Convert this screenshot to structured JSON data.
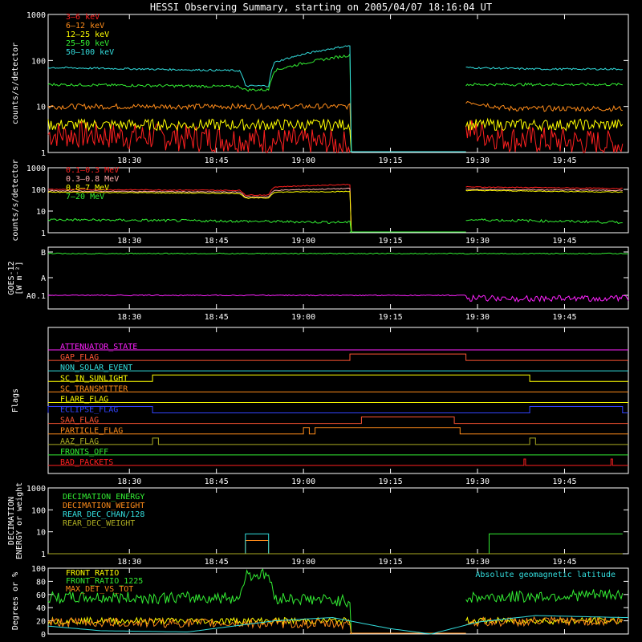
{
  "title": "HESSI Observing Summary, starting on 2005/04/07 18:16:04 UT",
  "time_ticks": [
    "18:30",
    "18:45",
    "19:00",
    "19:15",
    "19:30",
    "19:45"
  ],
  "colors": {
    "axis": "#ffffff",
    "background": "#000000"
  },
  "chart_data": [
    {
      "type": "line",
      "panel": "low-energy-rates",
      "ylabel": "counts/s/detector",
      "y_scale": "log",
      "ylim": [
        1,
        1000
      ],
      "y_ticks": [
        "1",
        "10",
        "100",
        "1000"
      ],
      "legend_placement": "top-left",
      "data_gaps": [
        [
          "19:08",
          "19:28"
        ]
      ],
      "series": [
        {
          "name": "3–6 keV",
          "color": "#ff2020",
          "x": [
            "18:16",
            "18:45",
            "19:08",
            "19:28",
            "19:35",
            "19:55"
          ],
          "values": [
            2.5,
            2.0,
            1.5,
            3.0,
            2.0,
            1.5
          ]
        },
        {
          "name": "6–12 keV",
          "color": "#ff8c1a",
          "x": [
            "18:16",
            "18:45",
            "19:08",
            "19:28",
            "19:35",
            "19:55"
          ],
          "values": [
            10,
            10,
            10,
            13,
            9,
            9
          ]
        },
        {
          "name": "12–25 keV",
          "color": "#ffff00",
          "x": [
            "18:16",
            "18:45",
            "19:08",
            "19:28",
            "19:35",
            "19:55"
          ],
          "values": [
            4,
            4,
            4,
            4,
            4,
            4
          ]
        },
        {
          "name": "25–50 keV",
          "color": "#33ee33",
          "x": [
            "18:16",
            "18:49",
            "18:50",
            "18:54",
            "18:55",
            "19:08",
            "19:28",
            "19:40",
            "19:55"
          ],
          "values": [
            30,
            27,
            23,
            23,
            60,
            130,
            30,
            30,
            30
          ]
        },
        {
          "name": "50–100 keV",
          "color": "#33dddd",
          "x": [
            "18:16",
            "18:49",
            "18:50",
            "18:54",
            "18:55",
            "19:08",
            "19:28",
            "19:40",
            "19:55"
          ],
          "values": [
            70,
            60,
            28,
            28,
            90,
            210,
            70,
            65,
            65
          ]
        }
      ]
    },
    {
      "type": "line",
      "panel": "high-energy-rates",
      "ylabel": "counts/s/detector",
      "y_scale": "log",
      "ylim": [
        1,
        1000
      ],
      "y_ticks": [
        "1",
        "10",
        "100",
        "1000"
      ],
      "legend_placement": "top-left",
      "data_gaps": [
        [
          "19:08",
          "19:28"
        ]
      ],
      "series": [
        {
          "name": "0.1–0.3 MeV",
          "color": "#ff2020",
          "x": [
            "18:16",
            "18:49",
            "18:50",
            "18:54",
            "18:55",
            "19:08",
            "19:28",
            "19:55"
          ],
          "values": [
            100,
            90,
            55,
            55,
            130,
            170,
            130,
            110
          ]
        },
        {
          "name": "0.3–0.8 MeV",
          "color": "#ffaaaa",
          "x": [
            "18:16",
            "18:49",
            "18:50",
            "18:54",
            "18:55",
            "19:08",
            "19:28",
            "19:55"
          ],
          "values": [
            85,
            75,
            45,
            45,
            90,
            110,
            100,
            90
          ]
        },
        {
          "name": "0.8–7 MeV",
          "color": "#ffff00",
          "x": [
            "18:16",
            "18:49",
            "18:50",
            "18:54",
            "18:55",
            "19:08",
            "19:28",
            "19:55"
          ],
          "values": [
            75,
            65,
            40,
            40,
            75,
            80,
            90,
            75
          ]
        },
        {
          "name": "7–20 MeV",
          "color": "#33ee33",
          "x": [
            "18:16",
            "18:45",
            "19:08",
            "19:28",
            "19:55"
          ],
          "values": [
            4,
            3.5,
            3,
            4,
            3
          ]
        }
      ]
    },
    {
      "type": "line",
      "panel": "goes",
      "ylabel": "GOES-12 [W m⁻²]",
      "y_ticks": [
        "B",
        "A",
        "A0.1"
      ],
      "series": [
        {
          "name": "long channel",
          "color": "#33ee33",
          "x": [
            "18:16",
            "19:55"
          ],
          "values": [
            "B",
            "B"
          ]
        },
        {
          "name": "short channel",
          "color": "#ff22ff",
          "x": [
            "18:16",
            "19:55"
          ],
          "values": [
            "A0.1",
            "A0.1"
          ]
        }
      ]
    },
    {
      "type": "line",
      "panel": "flags",
      "ylabel": "Flags",
      "series": [
        {
          "name": "ATTENUATOR_STATE",
          "color": "#ff22ff",
          "on": []
        },
        {
          "name": "GAP_FLAG",
          "color": "#ff5533",
          "on": [
            [
              "19:08",
              "19:28"
            ]
          ]
        },
        {
          "name": "NON_SOLAR_EVENT",
          "color": "#33dddd",
          "on": []
        },
        {
          "name": "SC_IN_SUNLIGHT",
          "color": "#ffff00",
          "on": [
            [
              "18:34",
              "19:39"
            ]
          ]
        },
        {
          "name": "SC_TRANSMITTER",
          "color": "#ff8c1a",
          "on": []
        },
        {
          "name": "FLARE_FLAG",
          "color": "#ffff00",
          "on": []
        },
        {
          "name": "ECLIPSE_FLAG",
          "color": "#3344ff",
          "on": [
            [
              "18:16",
              "18:34"
            ],
            [
              "19:39",
              "19:55"
            ]
          ]
        },
        {
          "name": "SAA_FLAG",
          "color": "#ff5533",
          "on": [
            [
              "19:10",
              "19:26"
            ]
          ]
        },
        {
          "name": "PARTICLE_FLAG",
          "color": "#ff8c1a",
          "on": [
            [
              "19:00",
              "19:01"
            ],
            [
              "19:02",
              "19:27"
            ]
          ]
        },
        {
          "name": "AAZ_FLAG",
          "color": "#aaaa22",
          "on": [
            [
              "18:34",
              "18:35"
            ],
            [
              "19:39",
              "19:40"
            ]
          ]
        },
        {
          "name": "FRONTS_OFF",
          "color": "#33ee33",
          "on": []
        },
        {
          "name": "BAD_PACKETS",
          "color": "#ff2020",
          "on": [
            [
              "19:38",
              "19:38"
            ],
            [
              "19:53",
              "19:53"
            ]
          ]
        }
      ]
    },
    {
      "type": "line",
      "panel": "decimation",
      "ylabel": "DECIMATION ENERGY or weight",
      "y_scale": "log",
      "ylim": [
        1,
        1000
      ],
      "y_ticks": [
        "1",
        "10",
        "100",
        "1000"
      ],
      "series": [
        {
          "name": "DECIMATION_ENERGY",
          "color": "#33ee33",
          "x": [
            "18:16",
            "19:32",
            "19:32",
            "19:55"
          ],
          "values": [
            1,
            1,
            8,
            8
          ]
        },
        {
          "name": "DECIMATION_WEIGHT",
          "color": "#ff8c1a",
          "x": [
            "18:16",
            "18:50",
            "18:50",
            "18:54",
            "18:54",
            "19:55"
          ],
          "values": [
            1,
            1,
            4,
            4,
            1,
            1
          ]
        },
        {
          "name": "REAR_DEC_CHAN/128",
          "color": "#33dddd",
          "x": [
            "18:16",
            "18:50",
            "18:50",
            "18:54",
            "18:54",
            "19:55"
          ],
          "values": [
            1,
            1,
            8,
            8,
            1,
            1
          ]
        },
        {
          "name": "REAR_DEC_WEIGHT",
          "color": "#aaaa22",
          "x": [
            "18:16",
            "19:55"
          ],
          "values": [
            1,
            1
          ]
        }
      ]
    },
    {
      "type": "line",
      "panel": "ratios",
      "ylabel": "Degrees or %",
      "ylim": [
        0,
        100
      ],
      "y_ticks": [
        "0",
        "20",
        "40",
        "60",
        "80",
        "100"
      ],
      "data_gaps": [
        [
          "19:08",
          "19:28"
        ]
      ],
      "annotation": "Absolute geomagnetic latitude",
      "series": [
        {
          "name": "FRONT_RATIO",
          "color": "#ffff00",
          "x": [
            "18:16",
            "19:08",
            "19:28",
            "19:55"
          ],
          "values": [
            20,
            20,
            20,
            20
          ]
        },
        {
          "name": "FRONT_RATIO_1225",
          "color": "#33ee33",
          "x": [
            "18:16",
            "18:49",
            "18:50",
            "18:54",
            "18:55",
            "19:08",
            "19:28",
            "19:55"
          ],
          "values": [
            55,
            55,
            90,
            90,
            55,
            50,
            55,
            60
          ]
        },
        {
          "name": "MAX_DET_VS_TOT",
          "color": "#ff8c1a",
          "x": [
            "18:16",
            "19:08",
            "19:28",
            "19:55"
          ],
          "values": [
            18,
            15,
            18,
            20
          ]
        },
        {
          "name": "Absolute geomagnetic latitude",
          "color": "#33dddd",
          "x": [
            "18:16",
            "18:25",
            "18:40",
            "18:55",
            "19:05",
            "19:15",
            "19:22",
            "19:30",
            "19:40",
            "19:55"
          ],
          "values": [
            12,
            5,
            3,
            20,
            25,
            8,
            0,
            18,
            28,
            25
          ]
        }
      ]
    }
  ]
}
